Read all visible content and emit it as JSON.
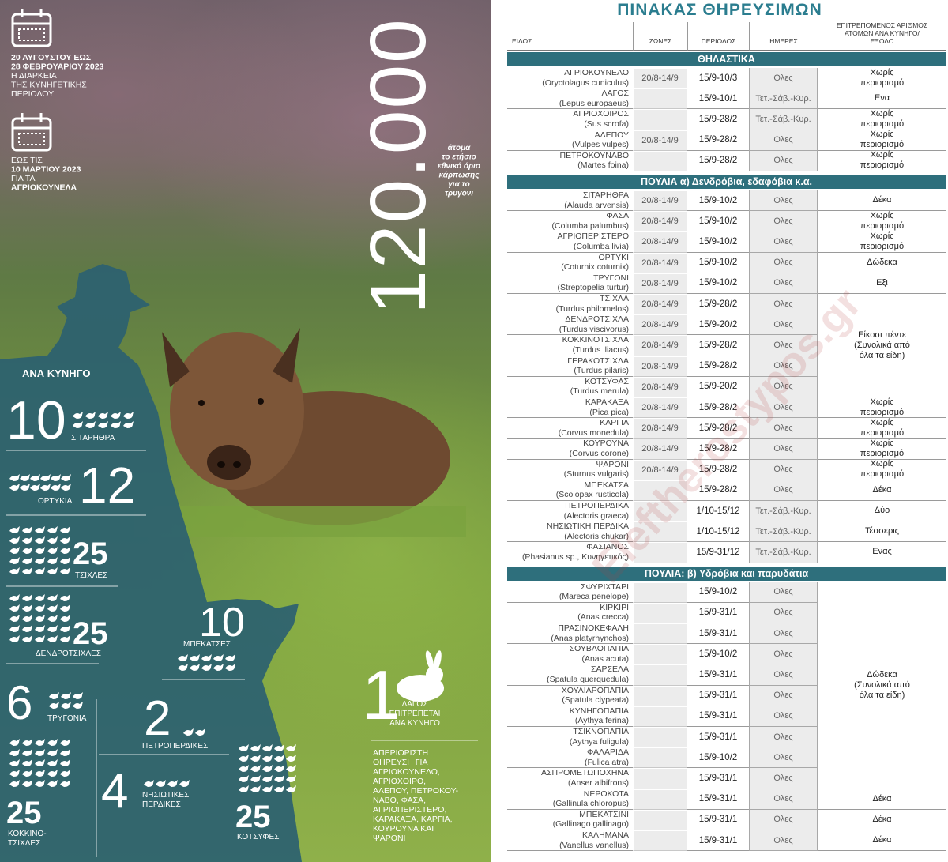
{
  "left": {
    "season": [
      "20 ΑΥΓΟΥΣΤΟΥ ΕΩΣ",
      "28 ΦΕΒΡΟΥΑΡΙΟΥ 2023",
      "Η ΔΙΑΡΚΕΙΑ",
      "ΤΗΣ ΚΥΝΗΓΕΤΙΚΗΣ",
      "ΠΕΡΙΟΔΟΥ"
    ],
    "rabbits": [
      "ΕΩΣ ΤΙΣ",
      "10 ΜΑΡΤΙΟΥ 2023",
      "ΓΙΑ ΤΑ",
      "ΑΓΡΙΟΚΟΥΝΕΛΑ"
    ],
    "turtle_dove_limit": {
      "number": "120.000",
      "text": [
        "άτομα",
        "το ετήσιο",
        "εθνικό όριο",
        "κάρπωσης",
        "για το",
        "τρυγόνι"
      ]
    },
    "per_hunter_title": "ΑΝΑ ΚΥΝΗΓΟ",
    "per_hunter": [
      {
        "value": 10,
        "label": [
          "ΣΙΤΑΡΗΘΡΑ"
        ]
      },
      {
        "value": 12,
        "label": [
          "ΟΡΤΥΚΙΑ"
        ]
      },
      {
        "value": 25,
        "label": [
          "ΤΣΙΧΛΕΣ"
        ]
      },
      {
        "value": 25,
        "label": [
          "ΔΕΝΔΡΟΤΣΙΧΛΕΣ"
        ]
      },
      {
        "value": 10,
        "label": [
          "ΜΠΕΚΑΤΣΕΣ"
        ]
      },
      {
        "value": 6,
        "label": [
          "ΤΡΥΓΟΝΙΑ"
        ]
      },
      {
        "value": 2,
        "label": [
          "ΠΕΤΡΟΠΕΡΔΙΚΕΣ"
        ]
      },
      {
        "value": 4,
        "label": [
          "ΝΗΣΙΩΤΙΚΕΣ",
          "ΠΕΡΔΙΚΕΣ"
        ]
      },
      {
        "value": 25,
        "label": [
          "ΚΟΚΚΙΝΟ-",
          "ΤΣΙΧΛΕΣ"
        ]
      },
      {
        "value": 25,
        "label": [
          "ΚΟΤΣΥΦΕΣ"
        ]
      },
      {
        "value": 1,
        "label": [
          "ΛΑΓΟΣ",
          "ΕΠΙΤΡΕΠΕΤΑΙ",
          "ΑΝΑ ΚΥΝΗΓΟ"
        ]
      }
    ],
    "unlimited": [
      "ΑΠΕΡΙΟΡΙΣΤΗ",
      "ΘΗΡΕΥΣΗ ΓΙΑ",
      "ΑΓΡΙΟΚΟΥΝΕΛΟ,",
      "ΑΓΡΙΟΧΟΙΡΟ,",
      "ΑΛΕΠΟΥ, ΠΕΤΡΟΚΟΥ-",
      "ΝΑΒΟ, ΦΑΣΑ,",
      "ΑΓΡΙΟΠΕΡΙΣΤΕΡΟ,",
      "ΚΑΡΑΚΑΞΑ, ΚΑΡΓΙΑ,",
      "ΚΟΥΡΟΥΝΑ ΚΑΙ",
      "ΨΑΡΟΝΙ"
    ]
  },
  "table": {
    "title": "ΠΙΝΑΚΑΣ ΘΗΡΕΥΣΙΜΩΝ",
    "columns": [
      "ΕΙΔΟΣ",
      "ΖΩΝΕΣ",
      "ΠΕΡΙΟΔΟΣ",
      "ΗΜΕΡΕΣ",
      "ΕΠΙΤΡΕΠΟΜΕΝΟΣ ΑΡΙΘΜΟΣ ΑΤΟΜΩΝ ΑΝΑ ΚΥΝΗΓΟ/ΕΞΟΔΟ"
    ],
    "sections": [
      {
        "title": "ΘΗΛΑΣΤΙΚΑ",
        "rows": [
          {
            "name": "ΑΓΡΙΟΚΟΥΝΕΛΟ",
            "latin": "(Oryctolagus cuniculus)",
            "zone": "20/8-14/9",
            "period": "15/9-10/3",
            "days": "Ολες",
            "limit": "Χωρίς περιορισμό"
          },
          {
            "name": "ΛΑΓΟΣ",
            "latin": "(Lepus europaeus)",
            "zone": null,
            "period": "15/9-10/1",
            "days": "Τετ.-Σάβ.-Κυρ.",
            "limit": "Ενα"
          },
          {
            "name": "ΑΓΡΙΟΧΟΙΡΟΣ",
            "latin": "(Sus scrofa)",
            "zone": null,
            "period": "15/9-28/2",
            "days": "Τετ.-Σάβ.-Κυρ.",
            "limit": "Χωρίς περιορισμό"
          },
          {
            "name": "ΑΛΕΠΟΥ",
            "latin": "(Vulpes vulpes)",
            "zone": "20/8-14/9",
            "period": "15/9-28/2",
            "days": "Ολες",
            "limit": "Χωρίς περιορισμό"
          },
          {
            "name": "ΠΕΤΡΟΚΟΥΝΑΒΟ",
            "latin": "(Martes foina)",
            "zone": null,
            "period": "15/9-28/2",
            "days": "Ολες",
            "limit": "Χωρίς περιορισμό"
          }
        ]
      },
      {
        "title": "ΠΟΥΛΙΑ α) Δενδρόβια, εδαφόβια κ.α.",
        "rows": [
          {
            "name": "ΣΙΤΑΡΗΘΡΑ",
            "latin": "(Alauda arvensis)",
            "zone": "20/8-14/9",
            "period": "15/9-10/2",
            "days": "Ολες",
            "limit": "Δέκα"
          },
          {
            "name": "ΦΑΣΑ",
            "latin": "(Columba palumbus)",
            "zone": "20/8-14/9",
            "period": "15/9-10/2",
            "days": "Ολες",
            "limit": "Χωρίς περιορισμό"
          },
          {
            "name": "ΑΓΡΙΟΠΕΡΙΣΤΕΡΟ",
            "latin": "(Columba livia)",
            "zone": "20/8-14/9",
            "period": "15/9-10/2",
            "days": "Ολες",
            "limit": "Χωρίς περιορισμό"
          },
          {
            "name": "ΟΡΤΥΚΙ",
            "latin": "(Coturnix coturnix)",
            "zone": "20/8-14/9",
            "period": "15/9-10/2",
            "days": "Ολες",
            "limit": "Δώδεκα"
          },
          {
            "name": "ΤΡΥΓΟΝΙ",
            "latin": "(Streptopelia turtur)",
            "zone": "20/8-14/9",
            "period": "15/9-10/2",
            "days": "Ολες",
            "limit": "Εξι"
          },
          {
            "name": "ΤΣΙΧΛΑ",
            "latin": "(Turdus philomelos)",
            "zone": "20/8-14/9",
            "period": "15/9-28/2",
            "days": "Ολες",
            "limit": "Είκοσι πέντε (Συνολικά από όλα τα είδη)"
          },
          {
            "name": "ΔΕΝΔΡΟΤΣΙΧΛΑ",
            "latin": "(Turdus viscivorus)",
            "zone": "20/8-14/9",
            "period": "15/9-20/2",
            "days": "Ολες"
          },
          {
            "name": "ΚΟΚΚΙΝΟΤΣΙΧΛΑ",
            "latin": "(Turdus iliacus)",
            "zone": "20/8-14/9",
            "period": "15/9-28/2",
            "days": "Ολες"
          },
          {
            "name": "ΓΕΡΑΚΟΤΣΙΧΛΑ",
            "latin": "(Turdus pilaris)",
            "zone": "20/8-14/9",
            "period": "15/9-28/2",
            "days": "Ολες"
          },
          {
            "name": "ΚΟΤΣΥΦΑΣ",
            "latin": "(Turdus merula)",
            "zone": "20/8-14/9",
            "period": "15/9-20/2",
            "days": "Ολες"
          },
          {
            "name": "ΚΑΡΑΚΑΞΑ",
            "latin": "(Pica pica)",
            "zone": "20/8-14/9",
            "period": "15/9-28/2",
            "days": "Ολες",
            "limit": "Χωρίς περιορισμό"
          },
          {
            "name": "ΚΑΡΓΙΑ",
            "latin": "(Corvus monedula)",
            "zone": "20/8-14/9",
            "period": "15/9-28/2",
            "days": "Ολες",
            "limit": "Χωρίς περιορισμό"
          },
          {
            "name": "ΚΟΥΡΟΥΝΑ",
            "latin": "(Corvus corone)",
            "zone": "20/8-14/9",
            "period": "15/9-28/2",
            "days": "Ολες",
            "limit": "Χωρίς περιορισμό"
          },
          {
            "name": "ΨΑΡΟΝΙ",
            "latin": "(Sturnus vulgaris)",
            "zone": "20/8-14/9",
            "period": "15/9-28/2",
            "days": "Ολες",
            "limit": "Χωρίς περιορισμό"
          },
          {
            "name": "ΜΠΕΚΑΤΣΑ",
            "latin": "(Scolopax rusticola)",
            "zone": null,
            "period": "15/9-28/2",
            "days": "Ολες",
            "limit": "Δέκα"
          },
          {
            "name": "ΠΕΤΡΟΠΕΡΔΙΚΑ",
            "latin": "(Alectoris graeca)",
            "zone": null,
            "period": "1/10-15/12",
            "days": "Τετ.-Σάβ.-Κυρ.",
            "limit": "Δύο"
          },
          {
            "name": "ΝΗΣΙΩΤΙΚΗ ΠΕΡΔΙΚΑ",
            "latin": "(Alectoris chukar)",
            "zone": null,
            "period": "1/10-15/12",
            "days": "Τετ.-Σάβ.-Κυρ.",
            "limit": "Τέσσερις"
          },
          {
            "name": "ΦΑΣΙΑΝΟΣ",
            "latin": "(Phasianus sp., Κυνηγετικός)",
            "zone": null,
            "period": "15/9-31/12",
            "days": "Τετ.-Σάβ.-Κυρ.",
            "limit": "Ενας"
          }
        ]
      },
      {
        "title": "ΠΟΥΛΙΑ: β) Υδρόβια και παρυδάτια",
        "rows": [
          {
            "name": "ΣΦΥΡΙΧΤΑΡΙ",
            "latin": "(Mareca penelope)",
            "zone": null,
            "period": "15/9-10/2",
            "days": "Ολες",
            "limit": "Δώδεκα (Συνολικά από όλα τα είδη)"
          },
          {
            "name": "ΚΙΡΚΙΡΙ",
            "latin": "(Anas crecca)",
            "zone": null,
            "period": "15/9-31/1",
            "days": "Ολες"
          },
          {
            "name": "ΠΡΑΣΙΝΟΚΕΦΑΛΗ",
            "latin": "(Anas platyrhynchos)",
            "zone": null,
            "period": "15/9-31/1",
            "days": "Ολες"
          },
          {
            "name": "ΣΟΥΒΛΟΠΑΠΙΑ",
            "latin": "(Anas acuta)",
            "zone": null,
            "period": "15/9-10/2",
            "days": "Ολες"
          },
          {
            "name": "ΣΑΡΣΕΛΑ",
            "latin": "(Spatula querquedula)",
            "zone": null,
            "period": "15/9-31/1",
            "days": "Ολες"
          },
          {
            "name": "ΧΟΥΛΙΑΡΟΠΑΠΙΑ",
            "latin": "(Spatula clypeata)",
            "zone": null,
            "period": "15/9-31/1",
            "days": "Ολες"
          },
          {
            "name": "ΚΥΝΗΓΟΠΑΠΙΑ",
            "latin": "(Aythya ferina)",
            "zone": null,
            "period": "15/9-31/1",
            "days": "Ολες"
          },
          {
            "name": "ΤΣΙΚΝΟΠΑΠΙΑ",
            "latin": "(Aythya fuligula)",
            "zone": null,
            "period": "15/9-31/1",
            "days": "Ολες"
          },
          {
            "name": "ΦΑΛΑΡΙΔΑ",
            "latin": "(Fulica atra)",
            "zone": null,
            "period": "15/9-10/2",
            "days": "Ολες"
          },
          {
            "name": "ΑΣΠΡΟΜΕΤΩΠΟΧΗΝΑ",
            "latin": "(Anser albifrons)",
            "zone": null,
            "period": "15/9-31/1",
            "days": "Ολες"
          },
          {
            "name": "ΝΕΡΟΚΟΤΑ",
            "latin": "(Gallinula chloropus)",
            "zone": null,
            "period": "15/9-31/1",
            "days": "Ολες",
            "limit": "Δέκα"
          },
          {
            "name": "ΜΠΕΚΑΤΣΙΝΙ",
            "latin": "(Gallinago gallinago)",
            "zone": null,
            "period": "15/9-31/1",
            "days": "Ολες",
            "limit": "Δέκα"
          },
          {
            "name": "ΚΑΛΗΜΑΝΑ",
            "latin": "(Vanellus vanellus)",
            "zone": null,
            "period": "15/9-31/1",
            "days": "Ολες",
            "limit": "Δέκα"
          }
        ]
      }
    ]
  },
  "watermark": "Eleftherostypos.gr"
}
